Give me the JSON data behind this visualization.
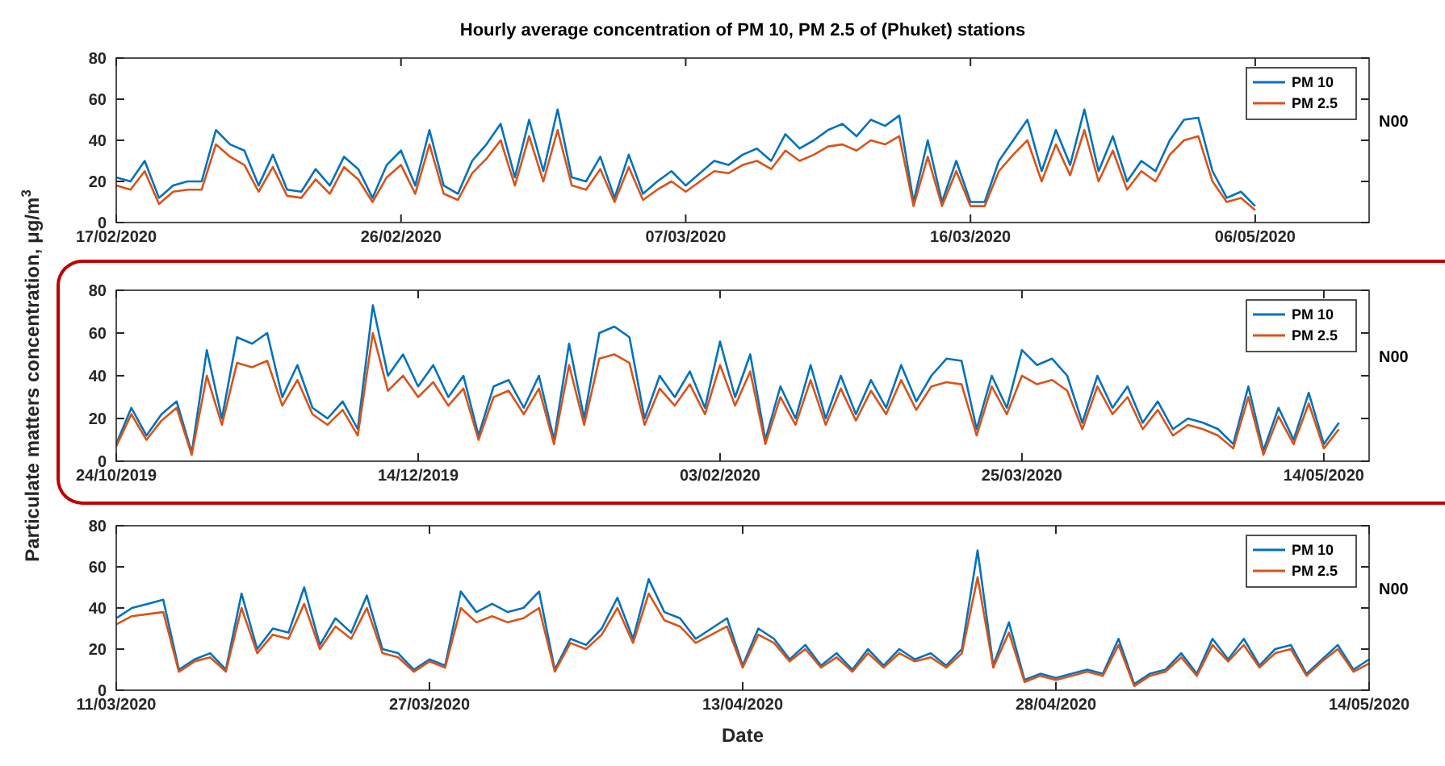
{
  "chart_data": [
    {
      "type": "line",
      "title": "Hourly average concentration of PM 10, PM 2.5 of (Phuket) stations",
      "annotations": [
        "N00"
      ],
      "legend": "top right",
      "grid": false,
      "marker": "none",
      "line_style": "solid",
      "ylim": [
        0,
        80
      ],
      "yticks": [
        0,
        20,
        40,
        60,
        80
      ],
      "categories": [
        "17/02/2020",
        null,
        null,
        null,
        null,
        null,
        null,
        null,
        null,
        null,
        null,
        null,
        null,
        null,
        null,
        null,
        null,
        null,
        null,
        null,
        "26/02/2020",
        null,
        null,
        null,
        null,
        null,
        null,
        null,
        null,
        null,
        null,
        null,
        null,
        null,
        null,
        null,
        null,
        null,
        null,
        null,
        "07/03/2020",
        null,
        null,
        null,
        null,
        null,
        null,
        null,
        null,
        null,
        null,
        null,
        null,
        null,
        null,
        null,
        null,
        null,
        null,
        null,
        "16/03/2020",
        null,
        null,
        null,
        null,
        null,
        null,
        null,
        null,
        null,
        null,
        null,
        null,
        null,
        null,
        null,
        null,
        null,
        null,
        null,
        "06/05/2020",
        null,
        null,
        null,
        null,
        null,
        null,
        null,
        null
      ],
      "series": [
        {
          "name": "PM 10",
          "color": "#0072bd",
          "values": [
            22,
            20,
            30,
            12,
            18,
            20,
            20,
            45,
            38,
            35,
            18,
            33,
            16,
            15,
            26,
            18,
            32,
            26,
            12,
            28,
            35,
            18,
            45,
            18,
            14,
            30,
            38,
            48,
            22,
            50,
            25,
            55,
            22,
            20,
            32,
            12,
            33,
            14,
            20,
            25,
            18,
            24,
            30,
            28,
            33,
            36,
            30,
            43,
            36,
            40,
            45,
            48,
            42,
            50,
            47,
            52,
            10,
            40,
            10,
            30,
            10,
            10,
            30,
            40,
            50,
            25,
            45,
            28,
            55,
            25,
            42,
            20,
            30,
            25,
            40,
            50,
            51,
            25,
            12,
            15,
            8,
            null,
            null,
            null,
            null,
            null,
            null,
            null,
            null
          ]
        },
        {
          "name": "PM 2.5",
          "color": "#d95319",
          "values": [
            18,
            16,
            25,
            9,
            15,
            16,
            16,
            38,
            32,
            28,
            15,
            27,
            13,
            12,
            21,
            14,
            27,
            21,
            10,
            22,
            28,
            14,
            38,
            14,
            11,
            24,
            31,
            40,
            18,
            42,
            20,
            45,
            18,
            16,
            26,
            10,
            27,
            11,
            16,
            20,
            15,
            20,
            25,
            24,
            28,
            30,
            26,
            35,
            30,
            33,
            37,
            38,
            35,
            40,
            38,
            42,
            8,
            32,
            8,
            25,
            8,
            8,
            25,
            33,
            40,
            20,
            38,
            23,
            45,
            20,
            35,
            16,
            25,
            20,
            33,
            40,
            42,
            20,
            10,
            12,
            6,
            null,
            null,
            null,
            null,
            null,
            null,
            null,
            null
          ]
        }
      ]
    },
    {
      "type": "line",
      "ylabel": "Particulate matters concentration, μg/m$^{3}$",
      "annotations": [
        "N00"
      ],
      "legend": "top right",
      "grid": false,
      "marker": "none",
      "line_style": "solid",
      "ylim": [
        0,
        80
      ],
      "yticks": [
        0,
        20,
        40,
        60,
        80
      ],
      "categories": [
        "24/10/2019",
        null,
        null,
        null,
        null,
        null,
        null,
        null,
        null,
        null,
        null,
        null,
        null,
        null,
        null,
        null,
        null,
        null,
        null,
        null,
        "14/12/2019",
        null,
        null,
        null,
        null,
        null,
        null,
        null,
        null,
        null,
        null,
        null,
        null,
        null,
        null,
        null,
        null,
        null,
        null,
        null,
        "03/02/2020",
        null,
        null,
        null,
        null,
        null,
        null,
        null,
        null,
        null,
        null,
        null,
        null,
        null,
        null,
        null,
        null,
        null,
        null,
        null,
        "25/03/2020",
        null,
        null,
        null,
        null,
        null,
        null,
        null,
        null,
        null,
        null,
        null,
        null,
        null,
        null,
        null,
        null,
        null,
        null,
        null,
        "14/05/2020",
        null,
        null,
        null
      ],
      "series": [
        {
          "name": "PM 10",
          "color": "#0072bd",
          "values": [
            8,
            25,
            12,
            22,
            28,
            4,
            52,
            20,
            58,
            55,
            60,
            30,
            45,
            25,
            20,
            28,
            15,
            73,
            40,
            50,
            35,
            45,
            30,
            40,
            12,
            35,
            38,
            25,
            40,
            10,
            55,
            20,
            60,
            63,
            58,
            20,
            40,
            30,
            42,
            25,
            56,
            30,
            50,
            10,
            35,
            20,
            45,
            20,
            40,
            22,
            38,
            25,
            45,
            28,
            40,
            48,
            47,
            15,
            40,
            25,
            52,
            45,
            48,
            40,
            18,
            40,
            25,
            35,
            18,
            28,
            15,
            20,
            18,
            15,
            8,
            35,
            5,
            25,
            10,
            32,
            8,
            18,
            null,
            null
          ]
        },
        {
          "name": "PM 2.5",
          "color": "#d95319",
          "values": [
            7,
            22,
            10,
            19,
            25,
            3,
            40,
            17,
            46,
            44,
            47,
            26,
            38,
            22,
            17,
            24,
            12,
            60,
            33,
            40,
            30,
            37,
            26,
            34,
            10,
            30,
            33,
            22,
            34,
            8,
            45,
            17,
            48,
            50,
            46,
            17,
            34,
            26,
            36,
            22,
            45,
            26,
            42,
            8,
            30,
            17,
            38,
            17,
            34,
            19,
            33,
            22,
            38,
            24,
            35,
            37,
            36,
            12,
            35,
            22,
            40,
            36,
            38,
            33,
            15,
            35,
            22,
            30,
            15,
            24,
            12,
            17,
            15,
            12,
            6,
            30,
            3,
            21,
            8,
            27,
            6,
            15,
            null,
            null
          ]
        }
      ]
    },
    {
      "type": "line",
      "xlabel": "Date",
      "annotations": [
        "N00"
      ],
      "legend": "top right",
      "grid": false,
      "marker": "none",
      "line_style": "solid",
      "ylim": [
        0,
        80
      ],
      "yticks": [
        0,
        20,
        40,
        60,
        80
      ],
      "categories": [
        "11/03/2020",
        null,
        null,
        null,
        null,
        null,
        null,
        null,
        null,
        null,
        null,
        null,
        null,
        null,
        null,
        null,
        null,
        null,
        null,
        null,
        "27/03/2020",
        null,
        null,
        null,
        null,
        null,
        null,
        null,
        null,
        null,
        null,
        null,
        null,
        null,
        null,
        null,
        null,
        null,
        null,
        null,
        "13/04/2020",
        null,
        null,
        null,
        null,
        null,
        null,
        null,
        null,
        null,
        null,
        null,
        null,
        null,
        null,
        null,
        null,
        null,
        null,
        null,
        "28/04/2020",
        null,
        null,
        null,
        null,
        null,
        null,
        null,
        null,
        null,
        null,
        null,
        null,
        null,
        null,
        null,
        null,
        null,
        null,
        null,
        "14/05/2020"
      ],
      "series": [
        {
          "name": "PM 10",
          "color": "#0072bd",
          "values": [
            35,
            40,
            42,
            44,
            10,
            15,
            18,
            10,
            47,
            20,
            30,
            28,
            50,
            22,
            35,
            28,
            46,
            20,
            18,
            10,
            15,
            12,
            48,
            38,
            42,
            38,
            40,
            48,
            10,
            25,
            22,
            30,
            45,
            25,
            54,
            38,
            35,
            25,
            30,
            35,
            12,
            30,
            25,
            15,
            22,
            12,
            18,
            10,
            20,
            12,
            20,
            15,
            18,
            12,
            20,
            68,
            12,
            33,
            5,
            8,
            6,
            8,
            10,
            8,
            25,
            3,
            8,
            10,
            18,
            8,
            25,
            15,
            25,
            12,
            20,
            22,
            8,
            15,
            22,
            10,
            15
          ]
        },
        {
          "name": "PM 2.5",
          "color": "#d95319",
          "values": [
            32,
            36,
            37,
            38,
            9,
            14,
            16,
            9,
            40,
            18,
            27,
            25,
            42,
            20,
            31,
            25,
            40,
            18,
            16,
            9,
            14,
            11,
            40,
            33,
            36,
            33,
            35,
            40,
            9,
            23,
            20,
            27,
            40,
            23,
            47,
            34,
            31,
            23,
            27,
            31,
            11,
            27,
            23,
            14,
            20,
            11,
            16,
            9,
            18,
            11,
            18,
            14,
            16,
            11,
            18,
            55,
            11,
            28,
            4,
            7,
            5,
            7,
            9,
            7,
            22,
            2,
            7,
            9,
            16,
            7,
            22,
            14,
            22,
            11,
            18,
            20,
            7,
            14,
            20,
            9,
            13
          ]
        }
      ]
    }
  ]
}
